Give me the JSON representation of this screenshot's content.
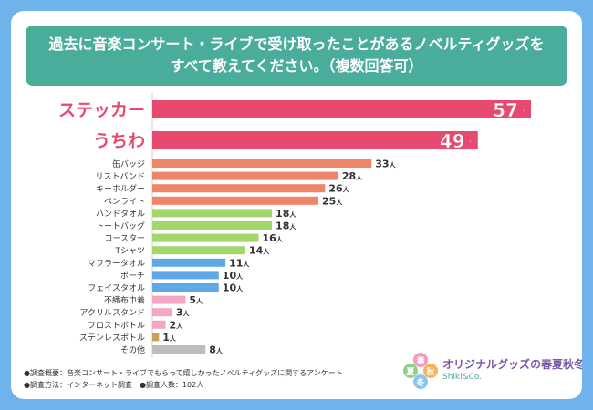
{
  "title_line1": "過去に音楽コンサート・ライブで受け取ったことがあるノベルティグッズを",
  "title_line2": "すべて教えてください。（複数回答可）",
  "chart_data": {
    "type": "bar",
    "orientation": "horizontal",
    "categories": [
      "ステッカー",
      "うちわ",
      "缶バッジ",
      "リストバンド",
      "キーホルダー",
      "ペンライト",
      "ハンドタオル",
      "トートバッグ",
      "コースター",
      "Tシャツ",
      "マフラータオル",
      "ポーチ",
      "フェイスタオル",
      "不織布巾着",
      "アクリルスタンド",
      "フロストボトル",
      "ステンレスボトル",
      "その他"
    ],
    "values": [
      57,
      49,
      33,
      28,
      26,
      25,
      18,
      18,
      16,
      14,
      11,
      10,
      10,
      5,
      3,
      2,
      1,
      8
    ],
    "unit": "人",
    "xlim": [
      0,
      57
    ],
    "colors": [
      "#e84a6f",
      "#e84a6f",
      "#ee8468",
      "#ee8468",
      "#ee8468",
      "#ee8468",
      "#a3d66b",
      "#a3d66b",
      "#a3d66b",
      "#a3d66b",
      "#5fa8e8",
      "#5fa8e8",
      "#5fa8e8",
      "#f4a6c5",
      "#f4a6c5",
      "#f4a6c5",
      "#c9a25a",
      "#bdbdbd"
    ]
  },
  "footnote1": "●調査概要：音楽コンサート・ライブでもらって嬉しかったノベルティグッズに関するアンケート",
  "footnote2": "●調査方法：インターネット調査　●調査人数：102人",
  "logo": {
    "main": "オリジナルグッズの春夏秋冬",
    "sub": "Shiki&Co.",
    "seasons": [
      "春",
      "夏",
      "秋",
      "冬"
    ]
  }
}
